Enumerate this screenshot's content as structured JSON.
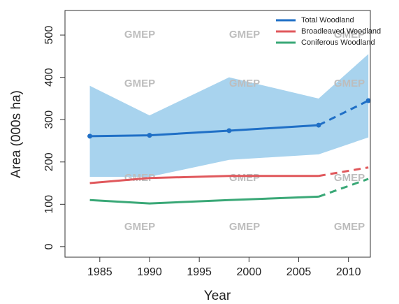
{
  "chart_data": {
    "type": "line",
    "x_label": "Year",
    "y_label": "Area (000s ha)",
    "x": [
      1984,
      1990,
      1998,
      2007,
      2012
    ],
    "series": [
      {
        "name": "Total Woodland",
        "color": "#1f6fc6",
        "values": [
          261,
          263,
          274,
          287,
          345
        ],
        "markers": true
      },
      {
        "name": "Broadleaved Woodland",
        "color": "#e0585c",
        "values": [
          150,
          162,
          167,
          167,
          187
        ]
      },
      {
        "name": "Coniferous Woodland",
        "color": "#3aa877",
        "values": [
          110,
          102,
          110,
          118,
          160
        ]
      }
    ],
    "band": {
      "color": "#a8d3ee",
      "upper": [
        380,
        310,
        400,
        350,
        455
      ],
      "lower": [
        165,
        165,
        205,
        218,
        258
      ]
    },
    "dashed_from_index": 3,
    "watermark": "GMEP",
    "xlim": [
      1981.5,
      2012.2
    ],
    "xticks": [
      1985,
      1990,
      1995,
      2000,
      2005,
      2010
    ],
    "ylim": [
      -25,
      558
    ],
    "yticks": [
      0,
      100,
      200,
      300,
      400,
      500
    ],
    "legend": "upper right"
  }
}
